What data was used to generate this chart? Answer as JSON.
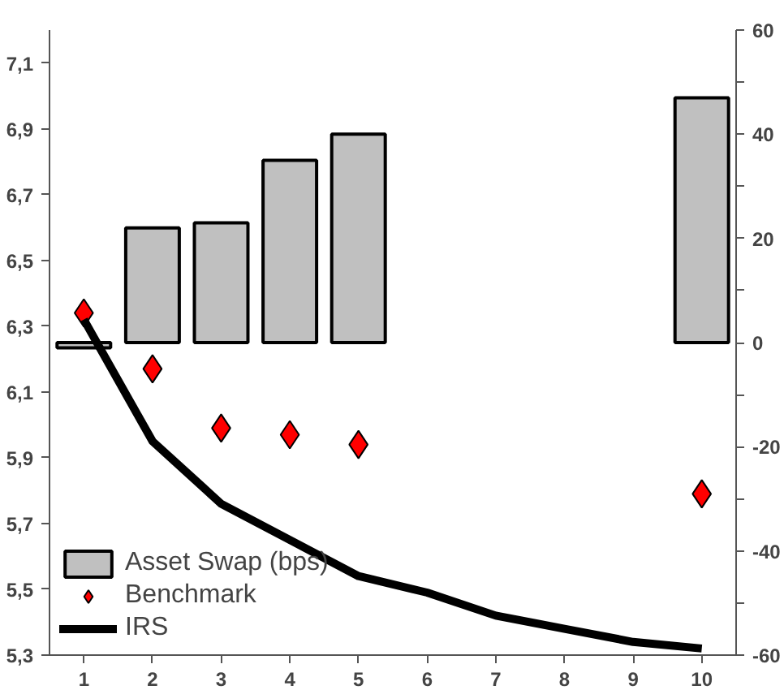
{
  "chart_data": {
    "type": "bar",
    "categories": [
      "1",
      "2",
      "3",
      "4",
      "5",
      "6",
      "7",
      "8",
      "9",
      "10"
    ],
    "series": [
      {
        "name": "Asset Swap (bps)",
        "axis": "y2",
        "color": "#c0c0c0",
        "values": [
          -1,
          22,
          23,
          35,
          40,
          null,
          null,
          null,
          null,
          47
        ]
      },
      {
        "name": "Benchmark",
        "type": "scatter",
        "marker": "diamond",
        "color": "#ff0000",
        "values": [
          6.34,
          6.17,
          5.99,
          5.97,
          5.94,
          null,
          null,
          null,
          null,
          5.79
        ]
      },
      {
        "name": "IRS",
        "type": "line",
        "color": "#000000",
        "values": [
          6.32,
          5.95,
          5.76,
          5.65,
          5.54,
          5.49,
          5.42,
          5.38,
          5.34,
          5.32
        ]
      }
    ],
    "ylim": [
      5.3,
      7.2
    ],
    "yticks": [
      {
        "value": 5.3,
        "label": "5,3"
      },
      {
        "value": 5.5,
        "label": "5,5"
      },
      {
        "value": 5.7,
        "label": "5,7"
      },
      {
        "value": 5.9,
        "label": "5,9"
      },
      {
        "value": 6.1,
        "label": "6,1"
      },
      {
        "value": 6.3,
        "label": "6,3"
      },
      {
        "value": 6.5,
        "label": "6,5"
      },
      {
        "value": 6.7,
        "label": "6,7"
      },
      {
        "value": 6.9,
        "label": "6,9"
      },
      {
        "value": 7.1,
        "label": "7,1"
      }
    ],
    "y2lim": [
      -60,
      60
    ],
    "y2ticks": [
      -60,
      {
        "value": -50,
        "label": null
      },
      -40,
      {
        "value": -30,
        "label": null
      },
      -20,
      {
        "value": -10,
        "label": null
      },
      0,
      {
        "value": 10,
        "label": null
      },
      20,
      {
        "value": 30,
        "label": null
      },
      40,
      {
        "value": 50,
        "label": null
      },
      60
    ],
    "legend": "bottom left",
    "grid": false
  }
}
